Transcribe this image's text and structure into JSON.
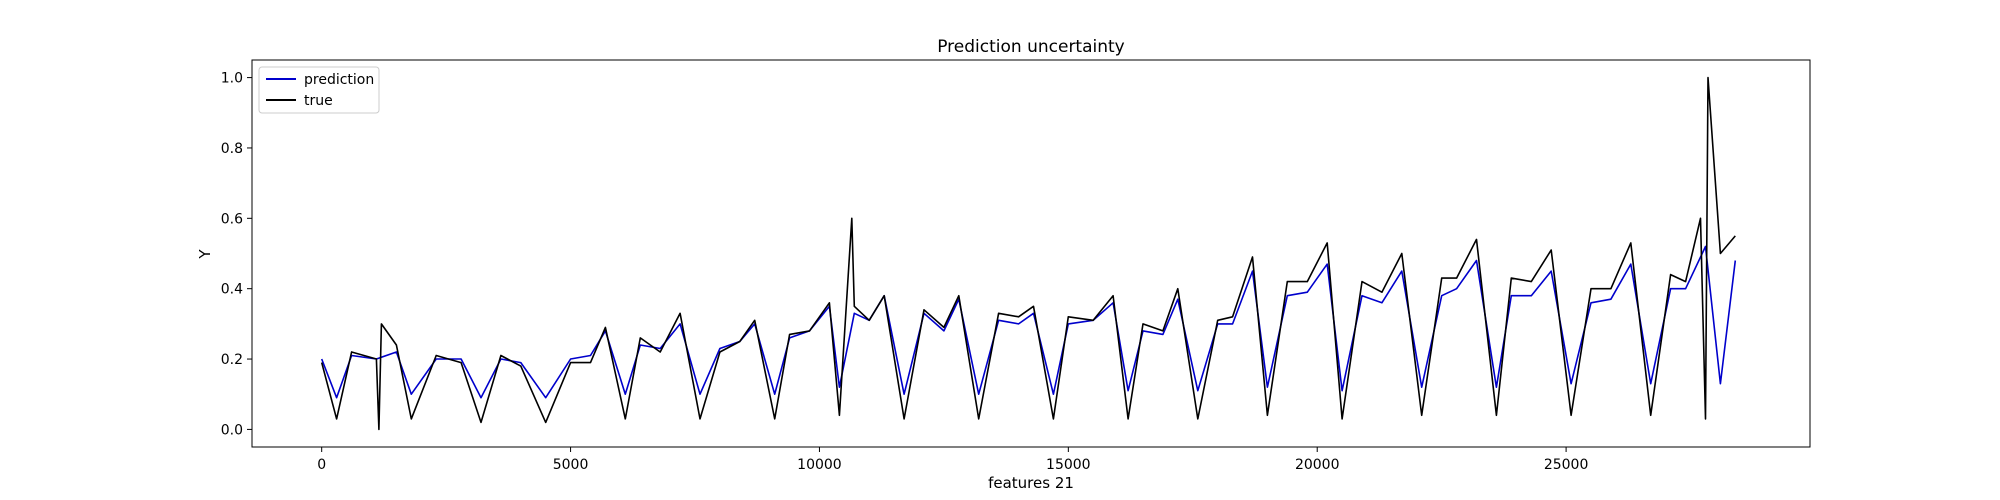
{
  "chart_data": {
    "type": "line",
    "title": "Prediction uncertainty",
    "xlabel": "features 21",
    "ylabel": "Y",
    "xlim": [
      -1400,
      29900
    ],
    "ylim": [
      -0.05,
      1.05
    ],
    "x_ticks": [
      0,
      5000,
      10000,
      15000,
      20000,
      25000
    ],
    "x_tick_labels": [
      "0",
      "5000",
      "10000",
      "15000",
      "20000",
      "25000"
    ],
    "y_ticks": [
      0.0,
      0.2,
      0.4,
      0.6,
      0.8,
      1.0
    ],
    "y_tick_labels": [
      "0.0",
      "0.2",
      "0.4",
      "0.6",
      "0.8",
      "1.0"
    ],
    "grid": false,
    "legend": {
      "placement": "top-left",
      "entries": [
        {
          "label": "prediction",
          "color": "#0000cc"
        },
        {
          "label": "true",
          "color": "#000000"
        }
      ]
    },
    "series": [
      {
        "name": "prediction",
        "color": "#0000cc",
        "x": [
          0,
          300,
          600,
          1100,
          1500,
          1800,
          2300,
          2800,
          3200,
          3600,
          4000,
          4500,
          5000,
          5400,
          5700,
          6100,
          6400,
          6800,
          7200,
          7600,
          8000,
          8400,
          8700,
          9100,
          9400,
          9800,
          10200,
          10400,
          10700,
          11000,
          11300,
          11700,
          12100,
          12500,
          12800,
          13200,
          13600,
          14000,
          14300,
          14700,
          15000,
          15500,
          15900,
          16200,
          16500,
          16900,
          17200,
          17600,
          18000,
          18300,
          18700,
          19000,
          19400,
          19800,
          20200,
          20500,
          20900,
          21300,
          21700,
          22100,
          22500,
          22800,
          23200,
          23600,
          23900,
          24300,
          24700,
          25100,
          25500,
          25900,
          26300,
          26700,
          27100,
          27400,
          27800,
          28100,
          28400
        ],
        "y": [
          0.2,
          0.09,
          0.21,
          0.2,
          0.22,
          0.1,
          0.2,
          0.2,
          0.09,
          0.2,
          0.19,
          0.09,
          0.2,
          0.21,
          0.28,
          0.1,
          0.24,
          0.23,
          0.3,
          0.1,
          0.23,
          0.25,
          0.3,
          0.1,
          0.26,
          0.28,
          0.35,
          0.12,
          0.33,
          0.31,
          0.38,
          0.1,
          0.33,
          0.28,
          0.37,
          0.1,
          0.31,
          0.3,
          0.33,
          0.1,
          0.3,
          0.31,
          0.36,
          0.11,
          0.28,
          0.27,
          0.37,
          0.11,
          0.3,
          0.3,
          0.45,
          0.12,
          0.38,
          0.39,
          0.47,
          0.11,
          0.38,
          0.36,
          0.45,
          0.12,
          0.38,
          0.4,
          0.48,
          0.12,
          0.38,
          0.38,
          0.45,
          0.13,
          0.36,
          0.37,
          0.47,
          0.13,
          0.4,
          0.4,
          0.52,
          0.13,
          0.48
        ]
      },
      {
        "name": "true",
        "color": "#000000",
        "x": [
          0,
          300,
          600,
          1100,
          1150,
          1200,
          1500,
          1800,
          2300,
          2800,
          3200,
          3600,
          4000,
          4500,
          5000,
          5400,
          5700,
          6100,
          6400,
          6800,
          7200,
          7600,
          8000,
          8400,
          8700,
          9100,
          9400,
          9800,
          10200,
          10400,
          10650,
          10700,
          11000,
          11300,
          11700,
          12100,
          12500,
          12800,
          13200,
          13600,
          14000,
          14300,
          14700,
          15000,
          15500,
          15900,
          16200,
          16500,
          16900,
          17200,
          17600,
          18000,
          18300,
          18700,
          19000,
          19400,
          19800,
          20200,
          20500,
          20900,
          21300,
          21700,
          22100,
          22500,
          22800,
          23200,
          23600,
          23900,
          24300,
          24700,
          25100,
          25500,
          25900,
          26300,
          26700,
          27100,
          27400,
          27700,
          27800,
          27850,
          28100,
          28400
        ],
        "y": [
          0.19,
          0.03,
          0.22,
          0.2,
          0.0,
          0.3,
          0.24,
          0.03,
          0.21,
          0.19,
          0.02,
          0.21,
          0.18,
          0.02,
          0.19,
          0.19,
          0.29,
          0.03,
          0.26,
          0.22,
          0.33,
          0.03,
          0.22,
          0.25,
          0.31,
          0.03,
          0.27,
          0.28,
          0.36,
          0.04,
          0.6,
          0.35,
          0.31,
          0.38,
          0.03,
          0.34,
          0.29,
          0.38,
          0.03,
          0.33,
          0.32,
          0.35,
          0.03,
          0.32,
          0.31,
          0.38,
          0.03,
          0.3,
          0.28,
          0.4,
          0.03,
          0.31,
          0.32,
          0.49,
          0.04,
          0.42,
          0.42,
          0.53,
          0.03,
          0.42,
          0.39,
          0.5,
          0.04,
          0.43,
          0.43,
          0.54,
          0.04,
          0.43,
          0.42,
          0.51,
          0.04,
          0.4,
          0.4,
          0.53,
          0.04,
          0.44,
          0.42,
          0.6,
          0.03,
          1.0,
          0.5,
          0.55
        ]
      }
    ]
  }
}
